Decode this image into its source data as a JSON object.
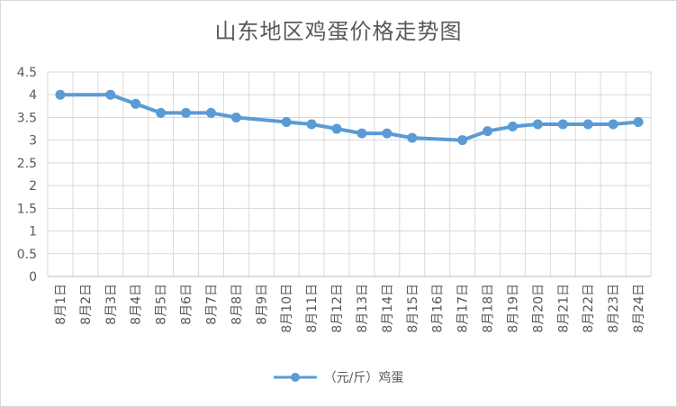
{
  "chart_data": {
    "type": "line",
    "title": "山东地区鸡蛋价格走势图",
    "xlabel": "",
    "ylabel": "",
    "categories": [
      "8月1日",
      "8月2日",
      "8月3日",
      "8月4日",
      "8月5日",
      "8月6日",
      "8月7日",
      "8月8日",
      "8月9日",
      "8月10日",
      "8月11日",
      "8月12日",
      "8月13日",
      "8月14日",
      "8月15日",
      "8月16日",
      "8月17日",
      "8月18日",
      "8月19日",
      "8月20日",
      "8月21日",
      "8月22日",
      "8月23日",
      "8月24日"
    ],
    "y_ticks": [
      "0",
      "0.5",
      "1",
      "1.5",
      "2",
      "2.5",
      "3",
      "3.5",
      "4",
      "4.5"
    ],
    "ylim": [
      0,
      4.5
    ],
    "grid": true,
    "legend_position": "bottom",
    "series": [
      {
        "name": "（元/斤）鸡蛋",
        "color": "#5b9bd5",
        "values": [
          4.0,
          null,
          4.0,
          3.8,
          3.6,
          3.6,
          3.6,
          3.5,
          null,
          3.4,
          3.35,
          3.25,
          3.15,
          3.15,
          3.05,
          null,
          3.0,
          3.2,
          3.3,
          3.35,
          3.35,
          3.35,
          3.35,
          3.4
        ]
      }
    ]
  }
}
